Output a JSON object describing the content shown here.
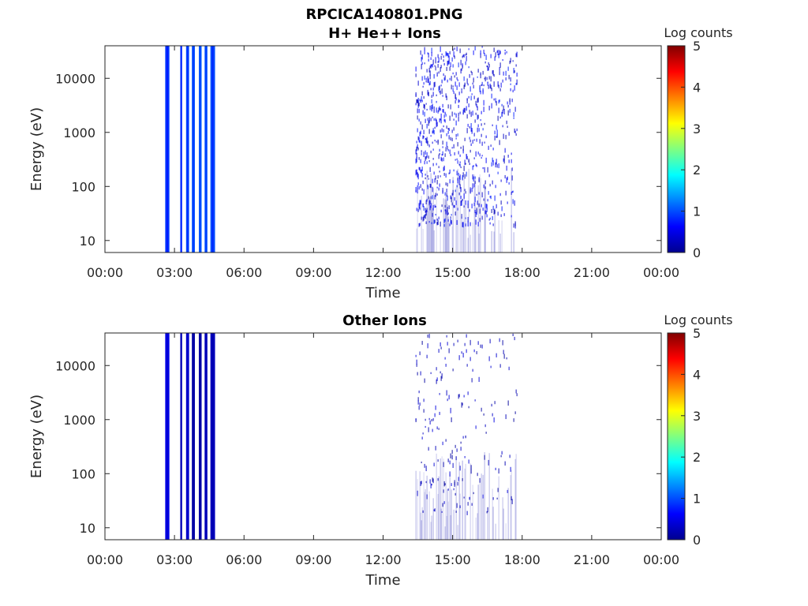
{
  "figure": {
    "title": "RPCICA140801.PNG"
  },
  "chart_data": [
    {
      "type": "heatmap",
      "title": "H+ He++ Ions",
      "xlabel": "Time",
      "ylabel": "Energy (eV)",
      "x_tick_labels": [
        "00:00",
        "03:00",
        "06:00",
        "09:00",
        "12:00",
        "15:00",
        "18:00",
        "21:00",
        "00:00"
      ],
      "xlim_hours": [
        0,
        24
      ],
      "y_scale": "log",
      "y_tick_labels": [
        "10",
        "100",
        "1000",
        "10000"
      ],
      "y_ticks": [
        10,
        100,
        1000,
        10000
      ],
      "ylim": [
        6,
        40000
      ],
      "colorbar": {
        "label": "Log counts",
        "ticks": [
          "0",
          "1",
          "2",
          "3",
          "4",
          "5"
        ],
        "range": [
          0,
          5
        ]
      },
      "bursts": [
        {
          "start_hour": 2.6,
          "end_hour": 2.78,
          "emin": 6,
          "emax": 40000,
          "log_counts": 0.9
        },
        {
          "start_hour": 3.25,
          "end_hour": 3.33,
          "emin": 6,
          "emax": 40000,
          "log_counts": 0.9
        },
        {
          "start_hour": 3.5,
          "end_hour": 3.63,
          "emin": 6,
          "emax": 40000,
          "log_counts": 1.0
        },
        {
          "start_hour": 3.75,
          "end_hour": 3.88,
          "emin": 6,
          "emax": 40000,
          "log_counts": 1.05
        },
        {
          "start_hour": 4.05,
          "end_hour": 4.17,
          "emin": 6,
          "emax": 40000,
          "log_counts": 1.1
        },
        {
          "start_hour": 4.3,
          "end_hour": 4.42,
          "emin": 6,
          "emax": 40000,
          "log_counts": 1.05
        },
        {
          "start_hour": 4.55,
          "end_hour": 4.75,
          "emin": 6,
          "emax": 40000,
          "log_counts": 1.0
        }
      ],
      "sparse_region": {
        "start_hour": 13.4,
        "end_hour": 17.8,
        "emin": 6,
        "emax": 40000,
        "log_counts": 0.5
      }
    },
    {
      "type": "heatmap",
      "title": "Other Ions",
      "xlabel": "Time",
      "ylabel": "Energy (eV)",
      "x_tick_labels": [
        "00:00",
        "03:00",
        "06:00",
        "09:00",
        "12:00",
        "15:00",
        "18:00",
        "21:00",
        "00:00"
      ],
      "xlim_hours": [
        0,
        24
      ],
      "y_scale": "log",
      "y_tick_labels": [
        "10",
        "100",
        "1000",
        "10000"
      ],
      "y_ticks": [
        10,
        100,
        1000,
        10000
      ],
      "ylim": [
        6,
        40000
      ],
      "colorbar": {
        "label": "Log counts",
        "ticks": [
          "0",
          "1",
          "2",
          "3",
          "4",
          "5"
        ],
        "range": [
          0,
          5
        ]
      },
      "bursts": [
        {
          "start_hour": 2.6,
          "end_hour": 2.78,
          "emin": 6,
          "emax": 40000,
          "log_counts": 0.5
        },
        {
          "start_hour": 3.25,
          "end_hour": 3.33,
          "emin": 6,
          "emax": 40000,
          "log_counts": 0.3
        },
        {
          "start_hour": 3.5,
          "end_hour": 3.63,
          "emin": 6,
          "emax": 40000,
          "log_counts": 0.4
        },
        {
          "start_hour": 3.75,
          "end_hour": 3.88,
          "emin": 6,
          "emax": 40000,
          "log_counts": 0.2
        },
        {
          "start_hour": 4.05,
          "end_hour": 4.17,
          "emin": 6,
          "emax": 40000,
          "log_counts": 0.2
        },
        {
          "start_hour": 4.3,
          "end_hour": 4.42,
          "emin": 6,
          "emax": 40000,
          "log_counts": 0.3
        },
        {
          "start_hour": 4.55,
          "end_hour": 4.75,
          "emin": 6,
          "emax": 40000,
          "log_counts": 0.3
        }
      ],
      "sparse_region": {
        "start_hour": 13.4,
        "end_hour": 17.8,
        "emin": 6,
        "emax": 40000,
        "log_counts": 0.3
      }
    }
  ]
}
